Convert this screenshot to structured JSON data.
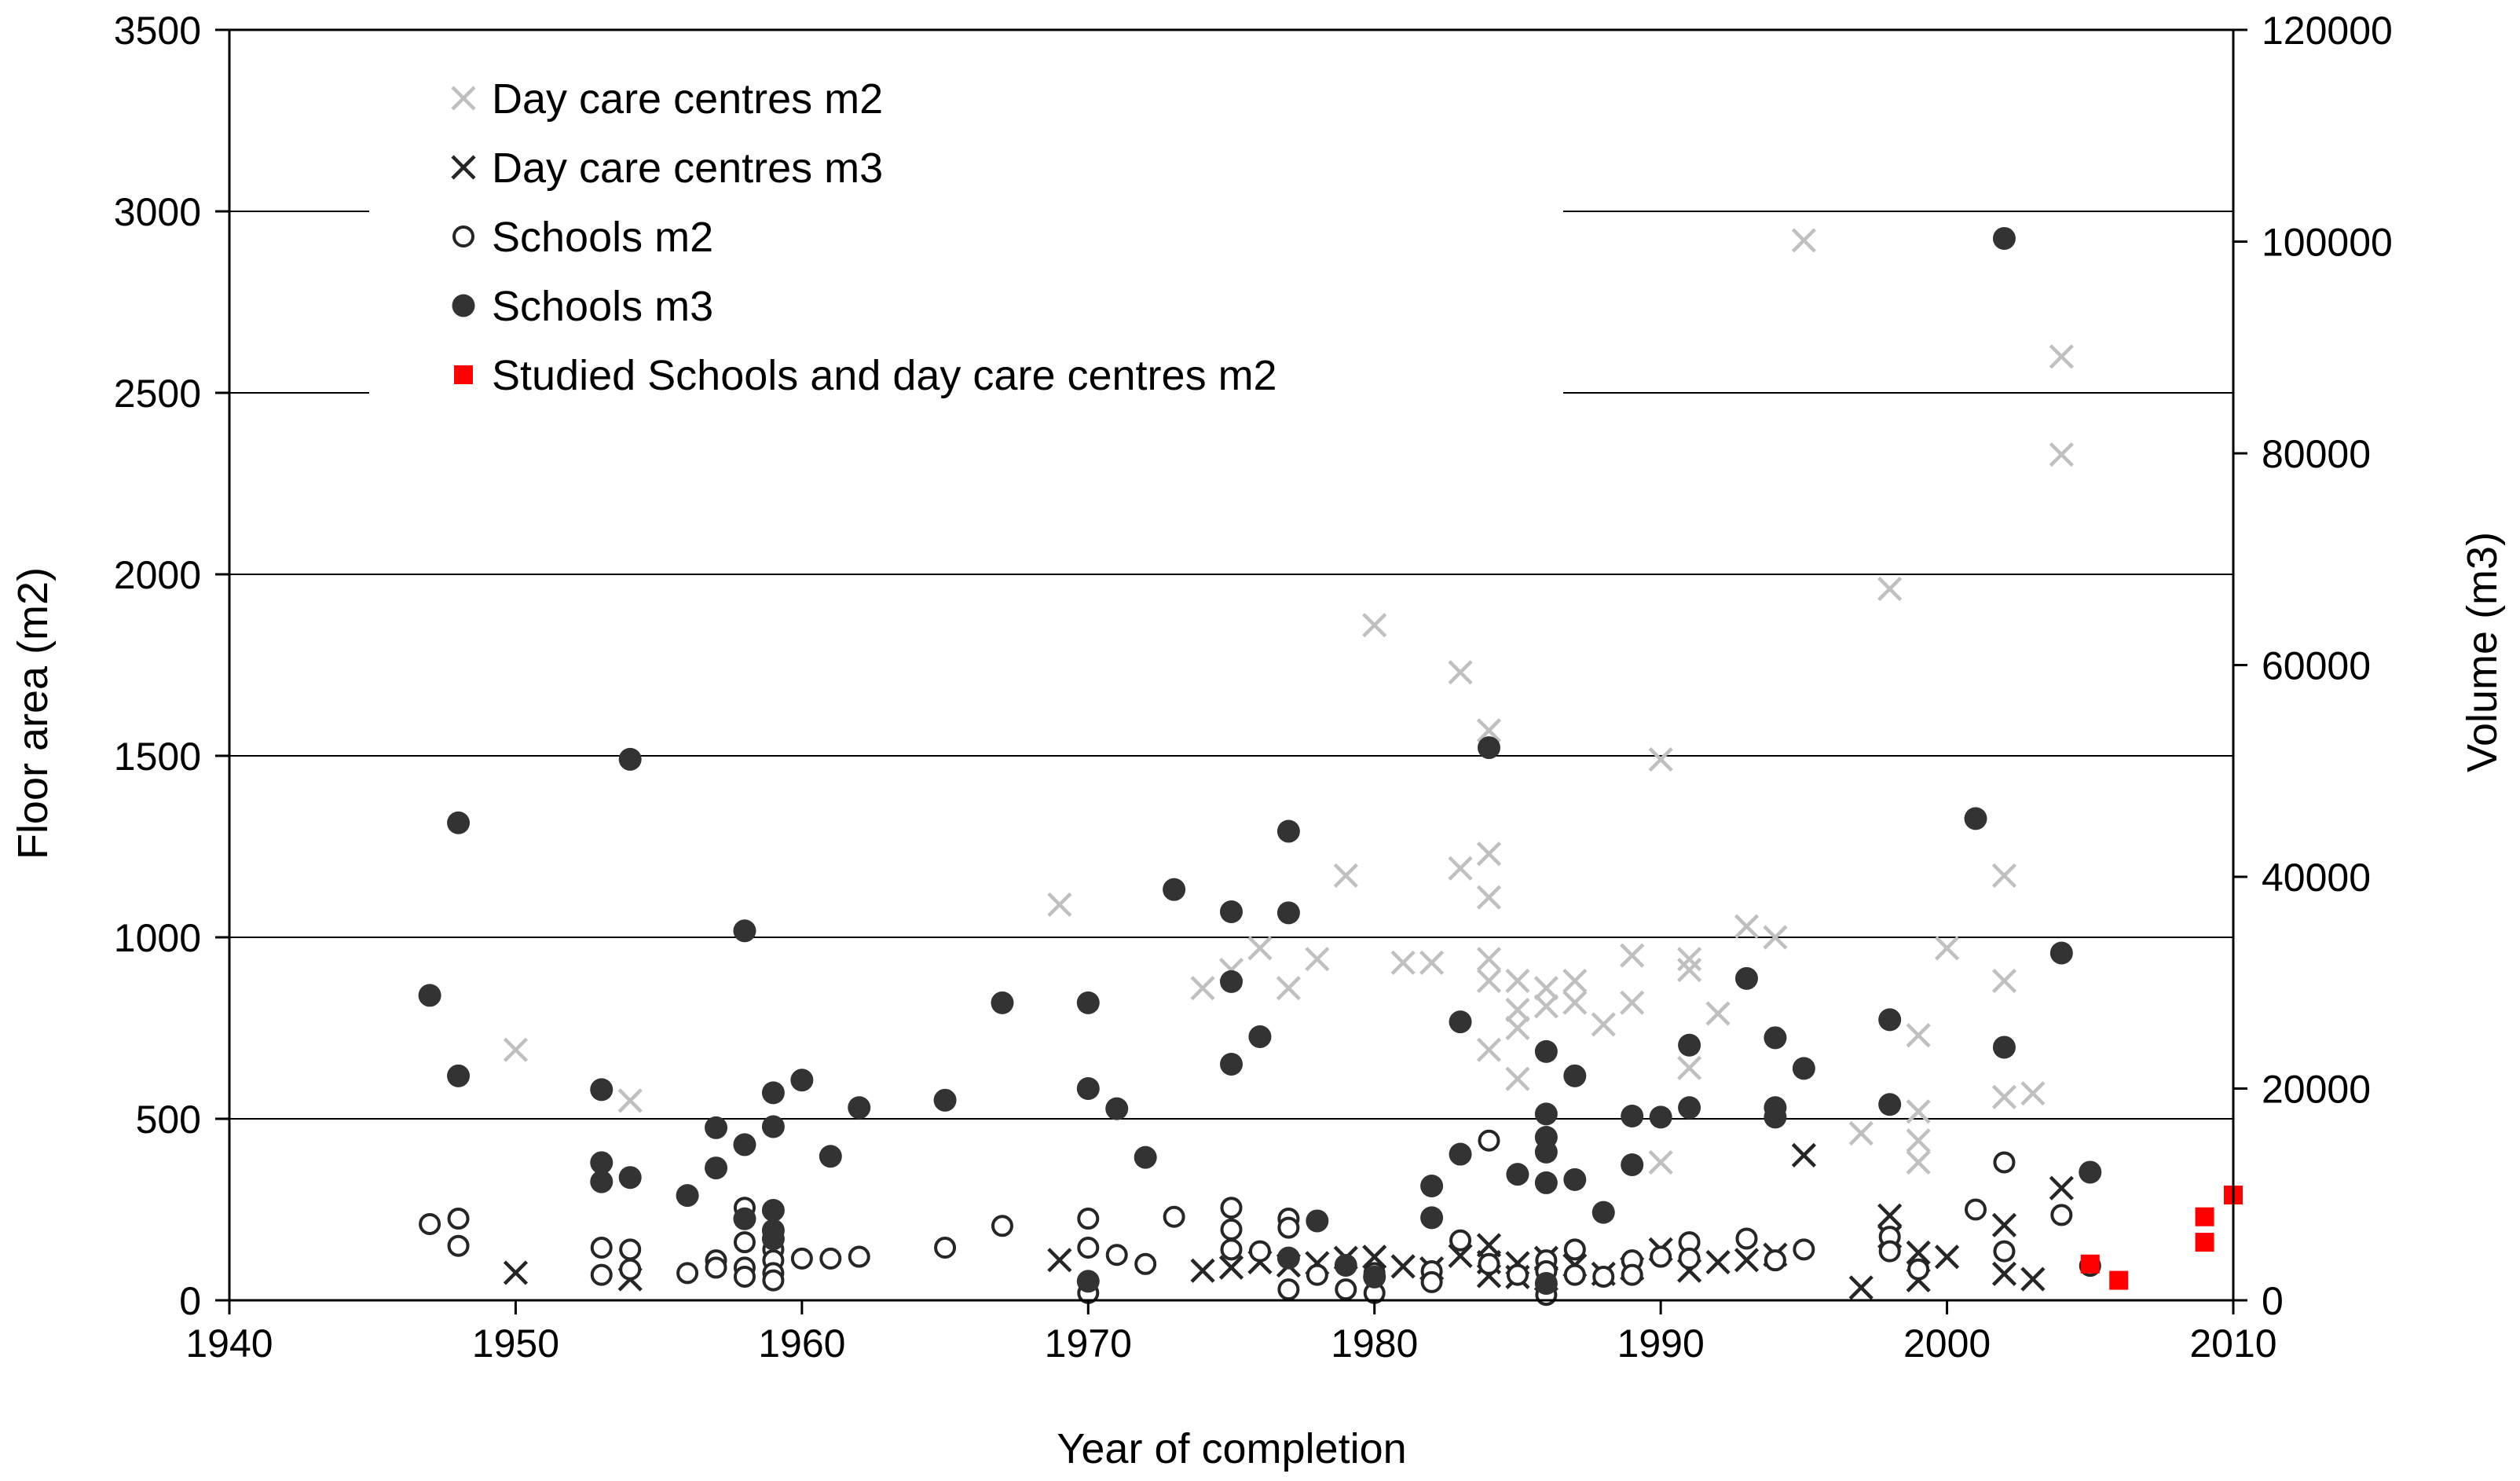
{
  "chart_data": {
    "type": "scatter",
    "title": "",
    "xlabel": "Year of completion",
    "ylabel": "Floor area (m2)",
    "y2label": "Volume (m3)",
    "xlim": [
      1940,
      2010
    ],
    "ylim": [
      0,
      3500
    ],
    "y2lim": [
      0,
      120000
    ],
    "x_ticks": [
      "1940",
      "1950",
      "1960",
      "1970",
      "1980",
      "1990",
      "2000",
      "2010"
    ],
    "y_ticks": [
      "0",
      "500",
      "1000",
      "1500",
      "2000",
      "2500",
      "3000",
      "3500"
    ],
    "y2_ticks": [
      "0",
      "20000",
      "40000",
      "60000",
      "80000",
      "100000",
      "120000"
    ],
    "grid": "horizontal",
    "legend_position": "top-left",
    "colors": {
      "dc_m2": "#c0c0c0",
      "dc_m3": "#262626",
      "sch_m2": "#262626",
      "sch_m3": "#333333",
      "studied": "#ff0000"
    },
    "series": [
      {
        "id": "dc_m2",
        "name": "Day care centres m2",
        "axis": "left",
        "marker": "x",
        "points": [
          [
            1950,
            690
          ],
          [
            1954,
            550
          ],
          [
            1969,
            1090
          ],
          [
            1974,
            860
          ],
          [
            1975,
            910
          ],
          [
            1976,
            970
          ],
          [
            1977,
            860
          ],
          [
            1978,
            940
          ],
          [
            1979,
            1170
          ],
          [
            1980,
            1860
          ],
          [
            1981,
            930
          ],
          [
            1982,
            930
          ],
          [
            1983,
            1730
          ],
          [
            1983,
            1190
          ],
          [
            1984,
            1570
          ],
          [
            1984,
            1230
          ],
          [
            1984,
            1110
          ],
          [
            1984,
            940
          ],
          [
            1984,
            880
          ],
          [
            1984,
            690
          ],
          [
            1985,
            880
          ],
          [
            1985,
            800
          ],
          [
            1985,
            750
          ],
          [
            1985,
            610
          ],
          [
            1986,
            860
          ],
          [
            1986,
            810
          ],
          [
            1987,
            880
          ],
          [
            1987,
            820
          ],
          [
            1988,
            760
          ],
          [
            1989,
            950
          ],
          [
            1989,
            820
          ],
          [
            1990,
            1490
          ],
          [
            1990,
            380
          ],
          [
            1991,
            940
          ],
          [
            1991,
            910
          ],
          [
            1991,
            640
          ],
          [
            1992,
            790
          ],
          [
            1993,
            1030
          ],
          [
            1994,
            1000
          ],
          [
            1995,
            2920
          ],
          [
            1997,
            460
          ],
          [
            1998,
            1960
          ],
          [
            1999,
            730
          ],
          [
            1999,
            520
          ],
          [
            1999,
            440
          ],
          [
            1999,
            380
          ],
          [
            2000,
            970
          ],
          [
            2002,
            1170
          ],
          [
            2002,
            880
          ],
          [
            2002,
            560
          ],
          [
            2003,
            570
          ],
          [
            2004,
            2600
          ],
          [
            2004,
            2330
          ]
        ]
      },
      {
        "id": "dc_m3",
        "name": "Day care centres m3",
        "axis": "right",
        "marker": "x",
        "points": [
          [
            1950,
            2600
          ],
          [
            1954,
            2000
          ],
          [
            1969,
            3800
          ],
          [
            1974,
            2800
          ],
          [
            1975,
            3100
          ],
          [
            1976,
            3600
          ],
          [
            1977,
            3300
          ],
          [
            1978,
            3500
          ],
          [
            1979,
            4000
          ],
          [
            1980,
            4100
          ],
          [
            1981,
            3200
          ],
          [
            1982,
            3000
          ],
          [
            1983,
            4200
          ],
          [
            1984,
            5200
          ],
          [
            1984,
            3600
          ],
          [
            1984,
            2300
          ],
          [
            1985,
            3500
          ],
          [
            1985,
            2200
          ],
          [
            1986,
            4000
          ],
          [
            1986,
            2000
          ],
          [
            1987,
            3300
          ],
          [
            1988,
            2500
          ],
          [
            1989,
            3000
          ],
          [
            1990,
            4800
          ],
          [
            1991,
            2800
          ],
          [
            1992,
            3600
          ],
          [
            1993,
            3800
          ],
          [
            1994,
            4300
          ],
          [
            1995,
            13700
          ],
          [
            1997,
            1200
          ],
          [
            1998,
            8000
          ],
          [
            1998,
            6000
          ],
          [
            1999,
            4500
          ],
          [
            1999,
            1900
          ],
          [
            2000,
            4100
          ],
          [
            2002,
            7100
          ],
          [
            2002,
            2500
          ],
          [
            2003,
            2000
          ],
          [
            2004,
            10600
          ]
        ]
      },
      {
        "id": "sch_m2",
        "name": "Schools m2",
        "axis": "left",
        "marker": "circle-open",
        "points": [
          [
            1947,
            210
          ],
          [
            1948,
            225
          ],
          [
            1948,
            150
          ],
          [
            1953,
            145
          ],
          [
            1953,
            70
          ],
          [
            1954,
            140
          ],
          [
            1954,
            85
          ],
          [
            1956,
            75
          ],
          [
            1957,
            110
          ],
          [
            1957,
            90
          ],
          [
            1958,
            255
          ],
          [
            1958,
            160
          ],
          [
            1958,
            90
          ],
          [
            1958,
            65
          ],
          [
            1959,
            170
          ],
          [
            1959,
            140
          ],
          [
            1959,
            110
          ],
          [
            1959,
            75
          ],
          [
            1959,
            55
          ],
          [
            1960,
            115
          ],
          [
            1961,
            115
          ],
          [
            1962,
            120
          ],
          [
            1965,
            145
          ],
          [
            1967,
            205
          ],
          [
            1970,
            225
          ],
          [
            1970,
            145
          ],
          [
            1970,
            20
          ],
          [
            1971,
            125
          ],
          [
            1972,
            100
          ],
          [
            1973,
            230
          ],
          [
            1975,
            255
          ],
          [
            1975,
            195
          ],
          [
            1975,
            140
          ],
          [
            1976,
            135
          ],
          [
            1977,
            225
          ],
          [
            1977,
            200
          ],
          [
            1977,
            30
          ],
          [
            1978,
            70
          ],
          [
            1979,
            30
          ],
          [
            1980,
            75
          ],
          [
            1980,
            20
          ],
          [
            1982,
            80
          ],
          [
            1982,
            50
          ],
          [
            1983,
            165
          ],
          [
            1984,
            440
          ],
          [
            1984,
            100
          ],
          [
            1985,
            70
          ],
          [
            1986,
            110
          ],
          [
            1986,
            80
          ],
          [
            1986,
            45
          ],
          [
            1986,
            15
          ],
          [
            1987,
            140
          ],
          [
            1987,
            70
          ],
          [
            1988,
            65
          ],
          [
            1989,
            110
          ],
          [
            1989,
            70
          ],
          [
            1990,
            120
          ],
          [
            1991,
            160
          ],
          [
            1991,
            115
          ],
          [
            1993,
            170
          ],
          [
            1994,
            110
          ],
          [
            1995,
            140
          ],
          [
            1998,
            175
          ],
          [
            1998,
            135
          ],
          [
            1999,
            85
          ],
          [
            2001,
            250
          ],
          [
            2002,
            380
          ],
          [
            2002,
            135
          ],
          [
            2004,
            235
          ],
          [
            2005,
            95
          ]
        ]
      },
      {
        "id": "sch_m3",
        "name": "Schools m3",
        "axis": "right",
        "marker": "circle-filled",
        "points": [
          [
            1947,
            28800
          ],
          [
            1948,
            45100
          ],
          [
            1948,
            21200
          ],
          [
            1953,
            19900
          ],
          [
            1953,
            13000
          ],
          [
            1953,
            11200
          ],
          [
            1954,
            51100
          ],
          [
            1954,
            11600
          ],
          [
            1956,
            9900
          ],
          [
            1957,
            16300
          ],
          [
            1957,
            12500
          ],
          [
            1958,
            34900
          ],
          [
            1958,
            14700
          ],
          [
            1958,
            7700
          ],
          [
            1959,
            19600
          ],
          [
            1959,
            16400
          ],
          [
            1959,
            8500
          ],
          [
            1959,
            6600
          ],
          [
            1959,
            5800
          ],
          [
            1960,
            20800
          ],
          [
            1961,
            13600
          ],
          [
            1962,
            18200
          ],
          [
            1965,
            18900
          ],
          [
            1967,
            28100
          ],
          [
            1970,
            28100
          ],
          [
            1970,
            20000
          ],
          [
            1970,
            1800
          ],
          [
            1971,
            18100
          ],
          [
            1972,
            13500
          ],
          [
            1973,
            38800
          ],
          [
            1975,
            36700
          ],
          [
            1975,
            30100
          ],
          [
            1975,
            22300
          ],
          [
            1976,
            24900
          ],
          [
            1977,
            44300
          ],
          [
            1977,
            36600
          ],
          [
            1977,
            4000
          ],
          [
            1978,
            7500
          ],
          [
            1979,
            3300
          ],
          [
            1980,
            2200
          ],
          [
            1982,
            10800
          ],
          [
            1982,
            7800
          ],
          [
            1983,
            26300
          ],
          [
            1983,
            13800
          ],
          [
            1984,
            52200
          ],
          [
            1985,
            11900
          ],
          [
            1986,
            23500
          ],
          [
            1986,
            17600
          ],
          [
            1986,
            15400
          ],
          [
            1986,
            14000
          ],
          [
            1986,
            11100
          ],
          [
            1986,
            1600
          ],
          [
            1987,
            21200
          ],
          [
            1987,
            11400
          ],
          [
            1988,
            8300
          ],
          [
            1989,
            17400
          ],
          [
            1989,
            12800
          ],
          [
            1990,
            17300
          ],
          [
            1991,
            24100
          ],
          [
            1991,
            18200
          ],
          [
            1993,
            30400
          ],
          [
            1994,
            24800
          ],
          [
            1994,
            18200
          ],
          [
            1994,
            17300
          ],
          [
            1995,
            21900
          ],
          [
            1998,
            26500
          ],
          [
            1998,
            18500
          ],
          [
            2001,
            45500
          ],
          [
            2002,
            100300
          ],
          [
            2002,
            23900
          ],
          [
            2004,
            32800
          ],
          [
            2005,
            12100
          ]
        ]
      },
      {
        "id": "studied",
        "name": "Studied Schools and day care centres m2",
        "axis": "left",
        "marker": "square",
        "points": [
          [
            2005,
            100
          ],
          [
            2006,
            55
          ],
          [
            2009,
            230
          ],
          [
            2009,
            160
          ],
          [
            2010,
            290
          ]
        ]
      }
    ]
  }
}
